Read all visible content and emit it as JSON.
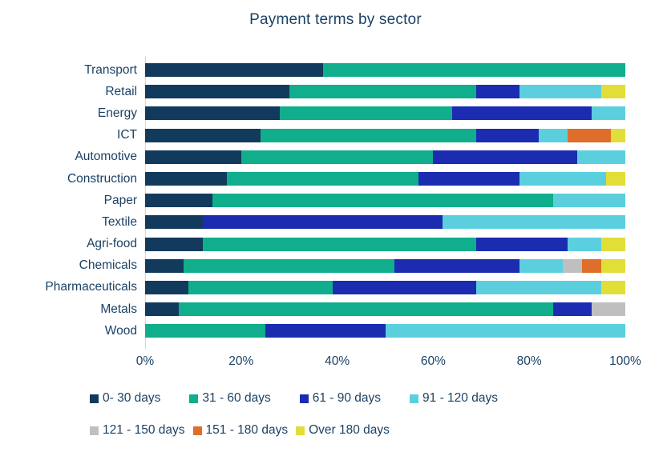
{
  "chart_data": {
    "type": "bar",
    "orientation": "horizontal",
    "stacked": true,
    "title": "Payment terms by sector",
    "unit": "%",
    "categories": [
      "Transport",
      "Retail",
      "Energy",
      "ICT",
      "Automotive",
      "Construction",
      "Paper",
      "Textile",
      "Agri-food",
      "Chemicals",
      "Pharmaceuticals",
      "Metals",
      "Wood"
    ],
    "series": [
      {
        "name": "0- 30 days",
        "color": "#123A5C",
        "values": [
          37,
          30,
          28,
          24,
          20,
          17,
          14,
          12,
          12,
          8,
          9,
          7,
          0
        ]
      },
      {
        "name": "31 - 60 days",
        "color": "#10AE8C",
        "values": [
          63,
          39,
          36,
          45,
          40,
          40,
          71,
          0,
          57,
          44,
          30,
          78,
          25
        ]
      },
      {
        "name": "61 - 90 days",
        "color": "#1B2CB1",
        "values": [
          0,
          9,
          29,
          13,
          30,
          21,
          0,
          50,
          19,
          26,
          30,
          8,
          25
        ]
      },
      {
        "name": "91 - 120 days",
        "color": "#5CCFDF",
        "values": [
          0,
          17,
          7,
          6,
          10,
          18,
          15,
          38,
          7,
          9,
          26,
          0,
          50
        ]
      },
      {
        "name": "121 - 150 days",
        "color": "#BFBFBF",
        "values": [
          0,
          0,
          0,
          0,
          0,
          0,
          0,
          0,
          0,
          4,
          0,
          7,
          0
        ]
      },
      {
        "name": "151 - 180 days",
        "color": "#DF6E2A",
        "values": [
          0,
          0,
          0,
          9,
          0,
          0,
          0,
          0,
          0,
          4,
          0,
          0,
          0
        ]
      },
      {
        "name": "Over 180 days",
        "color": "#E1DE38",
        "values": [
          0,
          5,
          0,
          3,
          0,
          4,
          0,
          0,
          5,
          5,
          5,
          0,
          0
        ]
      }
    ],
    "x_ticks": [
      "0%",
      "20%",
      "40%",
      "60%",
      "80%",
      "100%"
    ],
    "xlim": [
      0,
      100
    ],
    "grid": false,
    "legend_position": "bottom",
    "legend_rows": [
      [
        0,
        1,
        2,
        3
      ],
      [
        4,
        5,
        6
      ]
    ],
    "text_color": "#1B4265",
    "axis_line_color": "#D9D9D9"
  }
}
